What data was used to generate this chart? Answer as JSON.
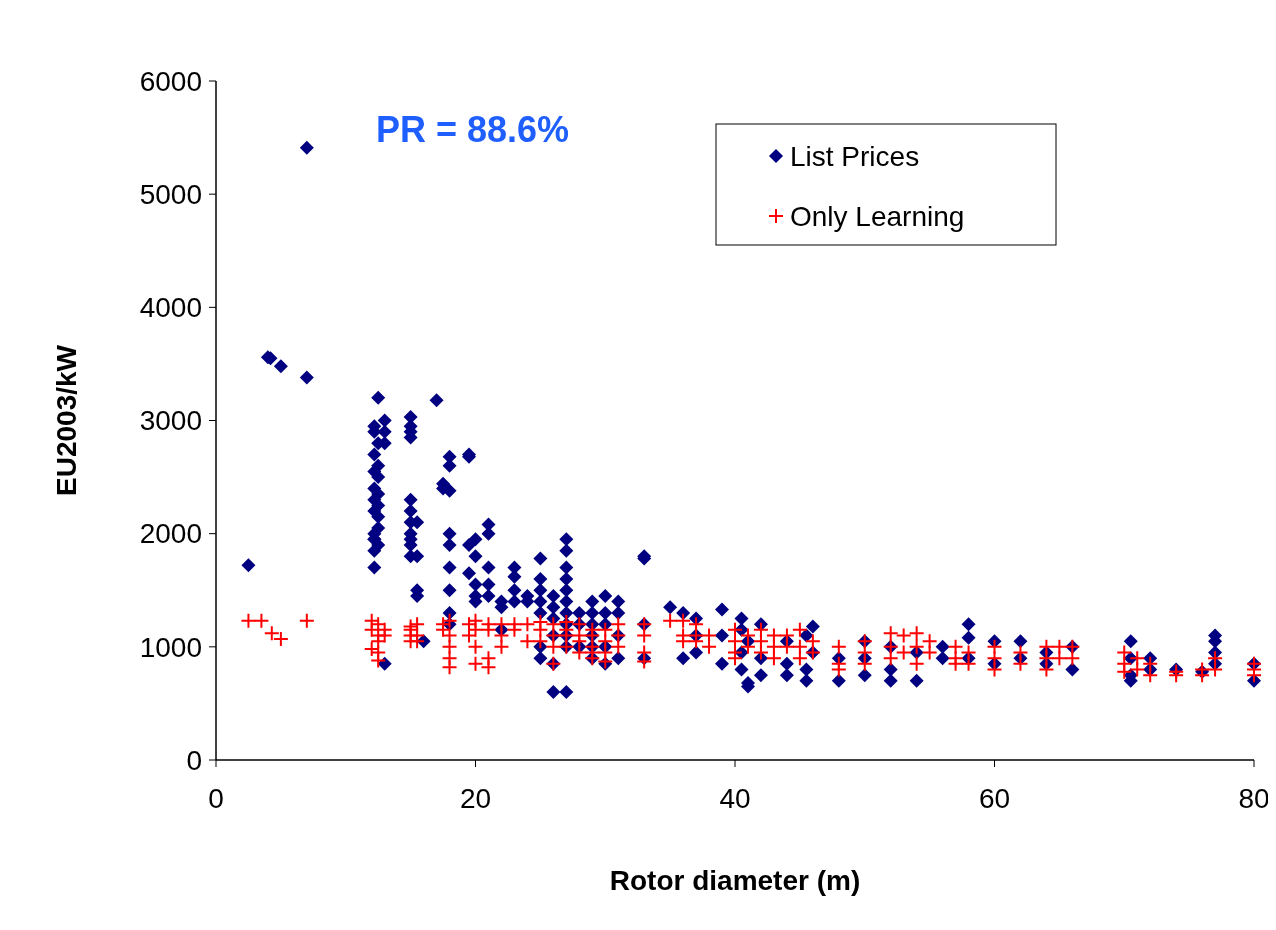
{
  "chart_data": {
    "type": "scatter",
    "xlabel": "Rotor diameter (m)",
    "ylabel": "EU2003/kW",
    "xlim": [
      0,
      80
    ],
    "ylim": [
      0,
      6000
    ],
    "xticks": [
      0,
      20,
      40,
      60,
      80
    ],
    "yticks": [
      0,
      1000,
      2000,
      3000,
      4000,
      5000,
      6000
    ],
    "grid": false,
    "legend": "top right",
    "annotations": [
      "PR = 88.6%"
    ],
    "series": [
      {
        "name": "List Prices",
        "color": "#000080",
        "marker": "diamond",
        "x": [
          2.5,
          4,
          4.2,
          5,
          7,
          7,
          12.2,
          12.2,
          12.2,
          12.2,
          12.2,
          12.2,
          12.2,
          12.2,
          12.2,
          12.2,
          12.2,
          12.2,
          12.5,
          12.5,
          12.5,
          12.5,
          12.5,
          12.5,
          12.5,
          12.5,
          12.5,
          13,
          13,
          13,
          13,
          15,
          15,
          15,
          15,
          15,
          15,
          15,
          15,
          15,
          15,
          15,
          15.5,
          15.5,
          15.5,
          15.5,
          16,
          17,
          17.5,
          17.5,
          18,
          18,
          18,
          18,
          18,
          18,
          18,
          18,
          18,
          19.5,
          19.5,
          19.5,
          19.5,
          20,
          20,
          20,
          20,
          20,
          21,
          21,
          21,
          21,
          21,
          22,
          22,
          22,
          23,
          23,
          23,
          23,
          24,
          24,
          25,
          25,
          25,
          25,
          25,
          25,
          25,
          26,
          26,
          26,
          26,
          26,
          26,
          27,
          27,
          27,
          27,
          27,
          27,
          27,
          27,
          27,
          27,
          27,
          28,
          28,
          28,
          29,
          29,
          29,
          29,
          29,
          29,
          30,
          30,
          30,
          30,
          30,
          31,
          31,
          31,
          31,
          33,
          33,
          33,
          33,
          35,
          36,
          36,
          37,
          37,
          37,
          39,
          39,
          39,
          40.5,
          40.5,
          40.5,
          40.5,
          41,
          41,
          41,
          42,
          42,
          42,
          44,
          44,
          44,
          45.5,
          45.5,
          45.5,
          46,
          46,
          48,
          48,
          50,
          50,
          50,
          52,
          52,
          52,
          54,
          54,
          56,
          56,
          58,
          58,
          58,
          60,
          60,
          62,
          62,
          64,
          64,
          66,
          66,
          70.5,
          70.5,
          70.5,
          70.5,
          72,
          72,
          74,
          76,
          77,
          77,
          77,
          77,
          80,
          80
        ],
        "values": [
          1720,
          3560,
          3550,
          3480,
          5410,
          3380,
          2950,
          2900,
          2700,
          2550,
          2400,
          2300,
          2200,
          2000,
          1950,
          1850,
          1700,
          1950,
          3200,
          2800,
          2600,
          2500,
          2350,
          2250,
          2150,
          2050,
          1900,
          3000,
          2900,
          2800,
          850,
          3030,
          2950,
          2900,
          2850,
          2300,
          2200,
          2100,
          2000,
          1950,
          1900,
          1800,
          2100,
          1800,
          1500,
          1450,
          1050,
          3180,
          2440,
          2400,
          2680,
          2600,
          2380,
          2000,
          1900,
          1700,
          1500,
          1300,
          1200,
          2700,
          2680,
          1900,
          1650,
          1950,
          1800,
          1550,
          1450,
          1400,
          2080,
          2000,
          1700,
          1550,
          1450,
          1400,
          1350,
          1150,
          1700,
          1620,
          1500,
          1400,
          1450,
          1400,
          1780,
          1600,
          1500,
          1400,
          1300,
          1000,
          900,
          1450,
          1350,
          1250,
          1100,
          600,
          850,
          1950,
          1850,
          1700,
          1600,
          1500,
          1400,
          1300,
          1200,
          1100,
          1000,
          600,
          1300,
          1200,
          1000,
          1400,
          1300,
          1200,
          1100,
          1000,
          900,
          1450,
          1300,
          1200,
          1000,
          850,
          1400,
          1300,
          1100,
          900,
          1800,
          1780,
          1200,
          900,
          1350,
          1300,
          900,
          1250,
          1100,
          950,
          1330,
          1100,
          850,
          1250,
          1150,
          950,
          800,
          680,
          650,
          1050,
          1200,
          900,
          750,
          1050,
          850,
          750,
          1100,
          800,
          700,
          1180,
          950,
          700,
          900,
          1050,
          900,
          750,
          1000,
          800,
          700,
          700,
          950,
          900,
          1000,
          1200,
          1080,
          900,
          1050,
          850,
          1050,
          900,
          850,
          950,
          1000,
          800,
          1050,
          900,
          750,
          700,
          900,
          800,
          800,
          780,
          1100,
          1050,
          950,
          850,
          850,
          700
        ]
      },
      {
        "name": "Only Learning",
        "color": "#ff0000",
        "marker": "cross",
        "x": [
          2.5,
          3.5,
          4.3,
          5,
          7,
          12,
          12,
          12,
          12.5,
          12.5,
          12.5,
          12.5,
          12.5,
          13,
          13,
          15,
          15,
          15,
          15,
          15.5,
          15.5,
          15.5,
          17.5,
          17.5,
          18,
          18,
          18,
          18,
          18,
          19.5,
          19.5,
          20,
          20,
          20,
          20,
          21,
          21,
          21,
          21,
          22,
          22,
          22,
          23,
          23,
          24,
          24,
          25,
          25,
          25,
          26,
          26,
          26,
          26,
          27,
          27,
          27,
          27,
          28,
          28,
          28,
          28,
          29,
          29,
          29,
          29,
          29,
          30,
          30,
          30,
          30,
          31,
          31,
          31,
          33,
          33,
          33,
          33,
          35,
          36,
          36,
          36,
          37,
          37,
          37,
          38,
          38,
          40,
          40,
          40,
          40,
          41,
          41,
          42,
          42,
          42,
          43,
          43,
          43,
          44,
          44,
          45,
          45,
          45,
          46,
          46,
          48,
          48,
          48,
          50,
          50,
          50,
          52,
          52,
          52,
          53,
          53,
          54,
          54,
          54,
          55,
          55,
          57,
          57,
          57,
          58,
          58,
          60,
          60,
          60,
          62,
          62,
          64,
          64,
          64,
          65,
          65,
          66,
          66,
          70,
          70,
          70,
          71,
          71,
          72,
          72,
          74,
          74,
          76,
          76,
          77,
          77,
          80,
          80,
          80
        ],
        "values": [
          1230,
          1230,
          1120,
          1070,
          1230,
          1230,
          1150,
          980,
          1200,
          1100,
          1050,
          950,
          880,
          1150,
          1100,
          1180,
          1150,
          1050,
          1100,
          1200,
          1100,
          1050,
          1200,
          1150,
          1230,
          1100,
          1000,
          900,
          820,
          1200,
          1100,
          1230,
          1150,
          1000,
          850,
          1200,
          1150,
          900,
          820,
          1200,
          1100,
          1000,
          1200,
          1150,
          1200,
          1050,
          1220,
          1150,
          1050,
          1200,
          1100,
          1000,
          850,
          1220,
          1150,
          1100,
          1000,
          1200,
          1100,
          1050,
          950,
          1150,
          1100,
          1000,
          950,
          900,
          1150,
          1050,
          950,
          870,
          1200,
          1100,
          1000,
          1200,
          1100,
          950,
          870,
          1230,
          1230,
          1100,
          1050,
          1200,
          1100,
          1050,
          1100,
          1000,
          1150,
          1050,
          950,
          900,
          1100,
          1000,
          1150,
          1050,
          950,
          1100,
          1000,
          900,
          1100,
          1000,
          1150,
          1000,
          900,
          1050,
          950,
          1000,
          850,
          800,
          1050,
          950,
          850,
          1120,
          1000,
          900,
          1100,
          950,
          1120,
          1000,
          850,
          1050,
          950,
          1000,
          900,
          850,
          950,
          850,
          1000,
          900,
          800,
          950,
          850,
          1000,
          900,
          800,
          1000,
          900,
          1000,
          900,
          950,
          850,
          780,
          900,
          800,
          850,
          750,
          780,
          750,
          800,
          750,
          900,
          800,
          850,
          800,
          750
        ]
      }
    ]
  }
}
